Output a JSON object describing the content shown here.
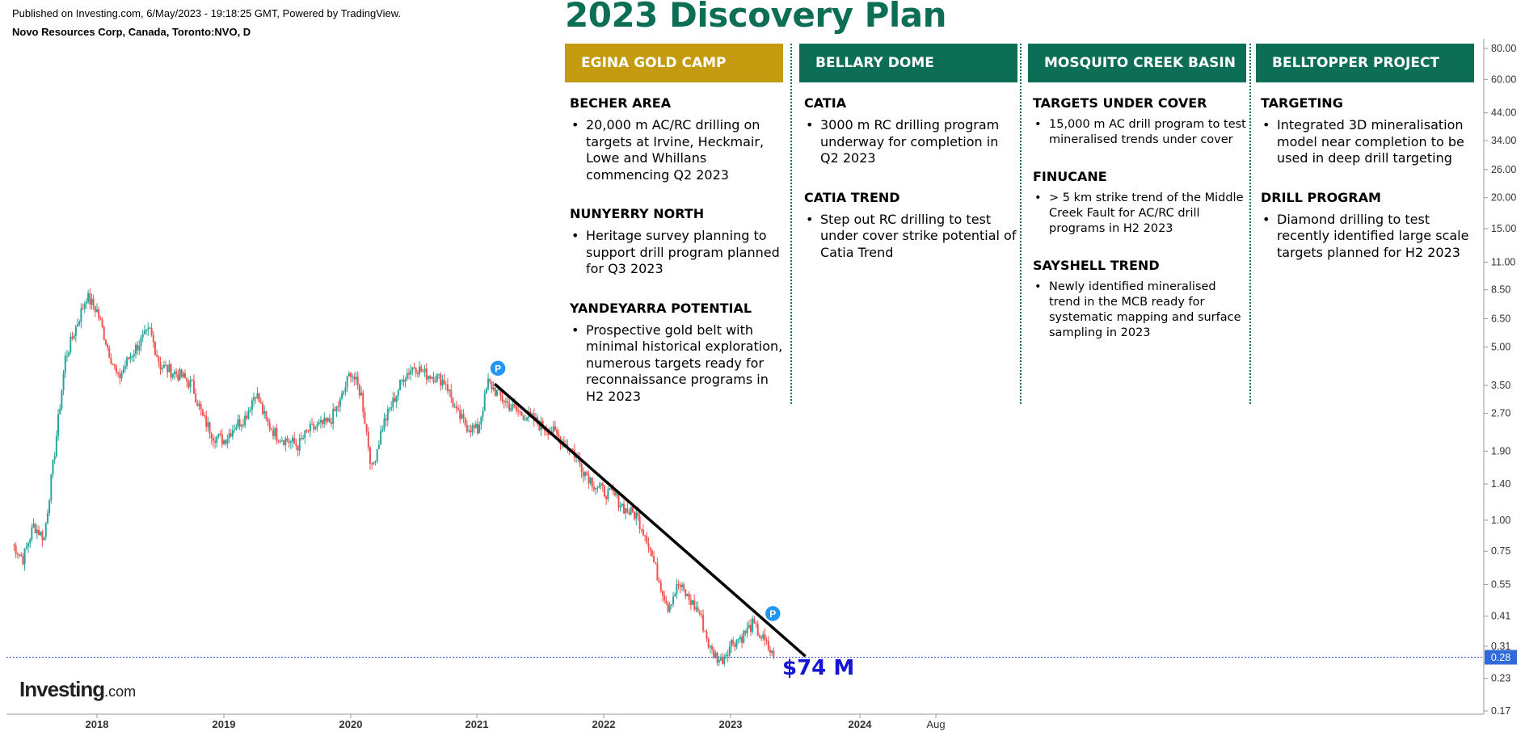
{
  "header": {
    "published": "Published on Investing.com, 6/May/2023 - 19:18:25 GMT, Powered by TradingView.",
    "symbol": "Novo Resources Corp, Canada, Toronto:NVO, D"
  },
  "plan": {
    "title": "2023 Discovery Plan",
    "colors": {
      "gold": "#c49a0e",
      "green": "#0b6e55"
    },
    "columns": [
      {
        "heading": "EGINA GOLD CAMP",
        "sections": [
          {
            "title": "BECHER AREA",
            "bullets": [
              "20,000 m AC/RC drilling on targets at Irvine, Heckmair, Lowe and Whillans commencing Q2 2023"
            ]
          },
          {
            "title": "NUNYERRY NORTH",
            "bullets": [
              "Heritage survey planning to support drill program planned for Q3 2023"
            ]
          },
          {
            "title": "YANDEYARRA POTENTIAL",
            "bullets": [
              "Prospective gold belt with minimal historical exploration, numerous targets ready for reconnaissance programs in H2 2023"
            ]
          }
        ]
      },
      {
        "heading": "BELLARY DOME",
        "sections": [
          {
            "title": "CATIA",
            "bullets": [
              "3000 m RC drilling program underway for completion in Q2 2023"
            ]
          },
          {
            "title": "CATIA TREND",
            "bullets": [
              "Step out RC drilling to test under cover strike potential of Catia Trend"
            ]
          }
        ]
      },
      {
        "heading": "MOSQUITO CREEK BASIN",
        "sections": [
          {
            "title": "TARGETS UNDER COVER",
            "bullets": [
              "15,000 m AC drill program to test mineralised trends under cover"
            ]
          },
          {
            "title": "FINUCANE",
            "bullets": [
              "> 5 km strike trend of the Middle Creek Fault for AC/RC drill programs in H2 2023"
            ]
          },
          {
            "title": "SAYSHELL TREND",
            "bullets": [
              "Newly identified mineralised trend in the MCB ready for systematic mapping and surface sampling in 2023"
            ]
          }
        ]
      },
      {
        "heading": "BELLTOPPER PROJECT",
        "sections": [
          {
            "title": "TARGETING",
            "bullets": [
              "Integrated 3D mineralisation model near completion to be used in deep drill targeting"
            ]
          },
          {
            "title": "DRILL PROGRAM",
            "bullets": [
              "Diamond drilling to test recently identified large scale targets planned for H2 2023"
            ]
          }
        ]
      }
    ]
  },
  "annotation": {
    "market_cap": "$74 M"
  },
  "logo": {
    "text": "Investing",
    "suffix": ".com"
  },
  "chart_data": {
    "type": "line",
    "scale": "log",
    "x_ticks": [
      "2018",
      "2019",
      "2020",
      "2021",
      "2022",
      "2023",
      "2024",
      "Aug"
    ],
    "y_ticks": [
      "80.00",
      "60.00",
      "44.00",
      "34.00",
      "26.00",
      "20.00",
      "15.00",
      "11.00",
      "8.50",
      "6.50",
      "5.00",
      "3.50",
      "2.70",
      "1.90",
      "1.40",
      "1.00",
      "0.75",
      "0.55",
      "0.41",
      "0.31",
      "0.23",
      "0.17"
    ],
    "last_price": "0.28",
    "price_color_up": "#26a69a",
    "price_color_down": "#ef5350",
    "series": [
      {
        "points": [
          [
            "2017-05",
            0.8
          ],
          [
            "2017-06",
            0.7
          ],
          [
            "2017-07",
            0.95
          ],
          [
            "2017-08",
            0.85
          ],
          [
            "2017-09",
            1.9
          ],
          [
            "2017-10",
            4.5
          ],
          [
            "2017-11",
            6.0
          ],
          [
            "2017-12",
            8.0
          ],
          [
            "2018-01",
            7.0
          ],
          [
            "2018-02",
            5.0
          ],
          [
            "2018-03",
            3.7
          ],
          [
            "2018-04",
            4.5
          ],
          [
            "2018-05",
            5.2
          ],
          [
            "2018-06",
            5.8
          ],
          [
            "2018-07",
            4.2
          ],
          [
            "2018-08",
            4.0
          ],
          [
            "2018-09",
            3.8
          ],
          [
            "2018-10",
            3.5
          ],
          [
            "2018-11",
            2.6
          ],
          [
            "2018-12",
            2.2
          ],
          [
            "2019-01",
            2.1
          ],
          [
            "2019-02",
            2.4
          ],
          [
            "2019-03",
            2.6
          ],
          [
            "2019-04",
            3.3
          ],
          [
            "2019-05",
            2.5
          ],
          [
            "2019-06",
            2.2
          ],
          [
            "2019-07",
            2.1
          ],
          [
            "2019-08",
            2.0
          ],
          [
            "2019-09",
            2.3
          ],
          [
            "2019-10",
            2.4
          ],
          [
            "2019-11",
            2.5
          ],
          [
            "2019-12",
            3.0
          ],
          [
            "2020-01",
            4.0
          ],
          [
            "2020-02",
            3.2
          ],
          [
            "2020-03",
            1.6
          ],
          [
            "2020-04",
            2.4
          ],
          [
            "2020-05",
            3.0
          ],
          [
            "2020-06",
            3.8
          ],
          [
            "2020-07",
            4.2
          ],
          [
            "2020-08",
            3.9
          ],
          [
            "2020-09",
            3.8
          ],
          [
            "2020-10",
            3.6
          ],
          [
            "2020-11",
            2.7
          ],
          [
            "2020-12",
            2.4
          ],
          [
            "2021-01",
            2.3
          ],
          [
            "2021-02",
            3.6
          ],
          [
            "2021-03",
            3.2
          ],
          [
            "2021-04",
            2.9
          ],
          [
            "2021-05",
            2.7
          ],
          [
            "2021-06",
            2.6
          ],
          [
            "2021-07",
            2.4
          ],
          [
            "2021-08",
            2.3
          ],
          [
            "2021-09",
            2.1
          ],
          [
            "2021-10",
            1.9
          ],
          [
            "2021-11",
            1.6
          ],
          [
            "2021-12",
            1.4
          ],
          [
            "2022-01",
            1.3
          ],
          [
            "2022-02",
            1.25
          ],
          [
            "2022-03",
            1.1
          ],
          [
            "2022-04",
            1.05
          ],
          [
            "2022-05",
            0.85
          ],
          [
            "2022-06",
            0.6
          ],
          [
            "2022-07",
            0.45
          ],
          [
            "2022-08",
            0.55
          ],
          [
            "2022-09",
            0.48
          ],
          [
            "2022-10",
            0.42
          ],
          [
            "2022-11",
            0.3
          ],
          [
            "2022-12",
            0.27
          ],
          [
            "2023-01",
            0.32
          ],
          [
            "2023-02",
            0.34
          ],
          [
            "2023-03",
            0.38
          ],
          [
            "2023-04",
            0.33
          ],
          [
            "2023-05",
            0.28
          ]
        ]
      }
    ],
    "trendline": {
      "from": [
        "2021-02",
        3.6
      ],
      "to": [
        "2023-08",
        0.3
      ]
    },
    "markers": [
      {
        "label": "P",
        "date": "2021-02",
        "price": 4.1
      },
      {
        "label": "P",
        "date": "2023-04",
        "price": 0.42
      }
    ]
  }
}
